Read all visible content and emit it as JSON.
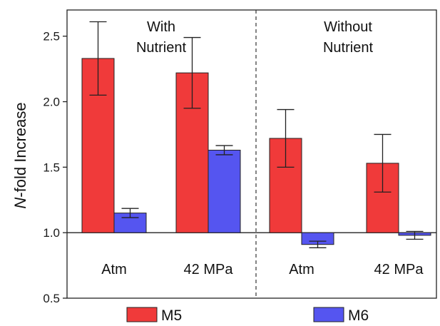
{
  "chart_data": {
    "type": "bar",
    "ylabel_italic": "N",
    "ylabel_rest": "-fold Increase",
    "ylim": [
      0.5,
      2.7
    ],
    "yticks": [
      0.5,
      1.0,
      1.5,
      2.0,
      2.5
    ],
    "ytick_labels": [
      "0.5",
      "1.0",
      "1.5",
      "2.0",
      "2.5"
    ],
    "baseline": 1.0,
    "categories": [
      "Atm",
      "42 MPa",
      "Atm",
      "42 MPa"
    ],
    "panels": [
      {
        "lines": [
          "With",
          "Nutrient"
        ]
      },
      {
        "lines": [
          "Without",
          "Nutrient"
        ]
      }
    ],
    "series": [
      {
        "name": "M5",
        "color": "#f03a3a",
        "values": [
          2.33,
          2.22,
          1.72,
          1.53
        ],
        "errors": [
          0.28,
          0.27,
          0.22,
          0.22
        ]
      },
      {
        "name": "M6",
        "color": "#5555f0",
        "values": [
          1.15,
          1.63,
          0.91,
          0.98
        ],
        "errors": [
          0.035,
          0.035,
          0.025,
          0.03
        ]
      }
    ],
    "legend_position": "bottom"
  }
}
